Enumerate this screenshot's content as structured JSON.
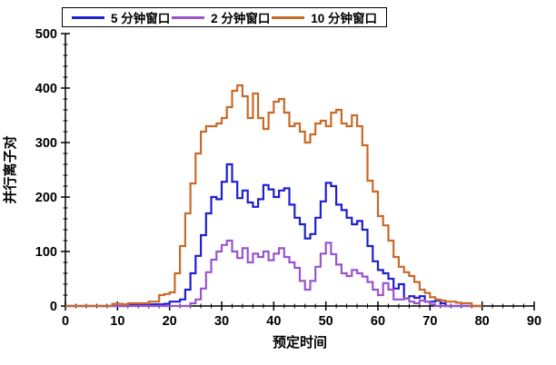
{
  "figure": {
    "background": "#ffffff"
  },
  "chart_data": {
    "type": "line",
    "style": "step",
    "title": "",
    "xlabel": "预定时间",
    "ylabel": "并行离子对",
    "grid": false,
    "legend": {
      "position": "top",
      "border": true
    },
    "x_axis": {
      "min": 0,
      "max": 90,
      "major_tick": 10,
      "minor_tick": 2,
      "tick_labels": [
        "0",
        "10",
        "20",
        "30",
        "40",
        "50",
        "60",
        "70",
        "80",
        "90"
      ]
    },
    "y_axis": {
      "min": 0,
      "max": 500,
      "major_tick": 100,
      "minor_tick": 20,
      "tick_labels": [
        "0",
        "100",
        "200",
        "300",
        "400",
        "500"
      ]
    },
    "x_start": 0,
    "x_step": 1,
    "series": [
      {
        "name": "5 分钟窗口",
        "color": "#1F1FCE",
        "values": [
          0,
          0,
          0,
          0,
          0,
          0,
          0,
          0,
          0,
          0,
          0,
          0,
          3,
          3,
          3,
          3,
          3,
          3,
          3,
          4,
          8,
          8,
          12,
          30,
          60,
          92,
          130,
          170,
          200,
          196,
          228,
          260,
          228,
          198,
          212,
          190,
          182,
          196,
          222,
          214,
          200,
          212,
          216,
          186,
          162,
          150,
          124,
          132,
          162,
          192,
          226,
          220,
          186,
          176,
          162,
          150,
          156,
          140,
          110,
          82,
          66,
          60,
          50,
          32,
          40,
          14,
          18,
          15,
          18,
          8,
          8,
          10,
          5,
          0,
          0,
          0,
          0,
          0,
          0,
          0,
          0
        ]
      },
      {
        "name": "2 分钟窗口",
        "color": "#9955CC",
        "values": [
          0,
          0,
          0,
          0,
          0,
          0,
          0,
          0,
          0,
          0,
          0,
          0,
          0,
          0,
          0,
          0,
          0,
          0,
          0,
          0,
          0,
          0,
          0,
          0,
          5,
          12,
          32,
          62,
          85,
          100,
          112,
          120,
          100,
          88,
          106,
          80,
          96,
          90,
          100,
          84,
          96,
          106,
          90,
          80,
          70,
          46,
          30,
          46,
          72,
          96,
          116,
          95,
          76,
          60,
          55,
          66,
          60,
          54,
          44,
          30,
          20,
          42,
          30,
          12,
          12,
          14,
          8,
          5,
          10,
          8,
          3,
          0,
          0,
          0,
          0,
          0,
          0,
          0,
          0,
          0,
          0
        ]
      },
      {
        "name": "10 分钟窗口",
        "color": "#C86A28",
        "values": [
          0,
          0,
          0,
          0,
          0,
          0,
          0,
          0,
          0,
          4,
          4,
          3,
          5,
          5,
          5,
          5,
          8,
          8,
          20,
          22,
          25,
          60,
          110,
          170,
          225,
          280,
          320,
          330,
          330,
          335,
          345,
          365,
          395,
          405,
          385,
          345,
          390,
          345,
          325,
          355,
          375,
          380,
          355,
          330,
          335,
          320,
          300,
          315,
          335,
          340,
          330,
          355,
          360,
          335,
          330,
          350,
          330,
          295,
          230,
          210,
          165,
          148,
          120,
          90,
          72,
          62,
          55,
          44,
          30,
          24,
          16,
          12,
          10,
          8,
          8,
          6,
          5,
          5,
          0,
          0,
          0
        ]
      }
    ]
  }
}
